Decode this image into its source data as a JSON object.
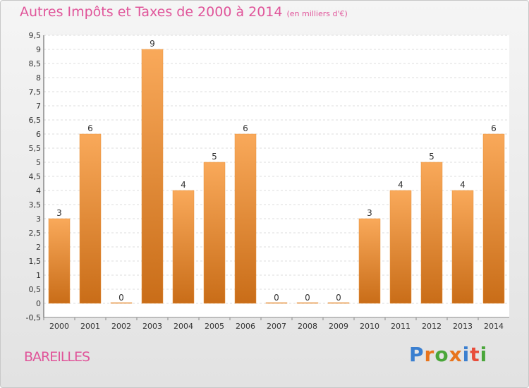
{
  "header": {
    "title": "Autres Impôts et Taxes de 2000 à 2014",
    "unit": "(en milliers d'€)"
  },
  "footer": {
    "place": "BAREILLES",
    "brand": "Proxiti"
  },
  "chart_data": {
    "type": "bar",
    "title": "Autres Impôts et Taxes de 2000 à 2014",
    "subtitle": "(en milliers d'€)",
    "xlabel": "",
    "ylabel": "",
    "ylim": [
      -0.5,
      9.5
    ],
    "yticks": [
      "-0,5",
      "0",
      "0,5",
      "1",
      "1,5",
      "2",
      "2,5",
      "3",
      "3,5",
      "4",
      "4,5",
      "5",
      "5,5",
      "6",
      "6,5",
      "7",
      "7,5",
      "8",
      "8,5",
      "9",
      "9,5"
    ],
    "grid": true,
    "categories": [
      "2000",
      "2001",
      "2002",
      "2003",
      "2004",
      "2005",
      "2006",
      "2007",
      "2008",
      "2009",
      "2010",
      "2011",
      "2012",
      "2013",
      "2014"
    ],
    "values": [
      3,
      6,
      0,
      9,
      4,
      5,
      6,
      0,
      0,
      0,
      3,
      4,
      5,
      4,
      6
    ],
    "colors": {
      "bar_top": "#f9a95a",
      "bar_bottom": "#c96d18",
      "title": "#e0559a"
    }
  }
}
